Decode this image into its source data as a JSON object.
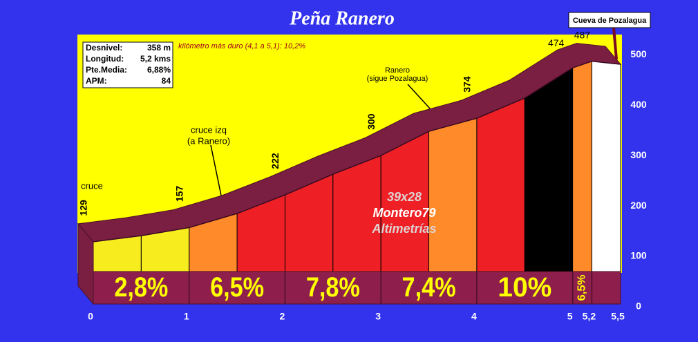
{
  "chart_data": {
    "type": "profile",
    "title": "Peña Ranero",
    "subtitle": "kilómetro más duro (4,1 a 5,1):  10,2%",
    "x": [
      0,
      0.5,
      1,
      1.5,
      2,
      2.5,
      3,
      3.5,
      4,
      4.5,
      5,
      5.2,
      5.5
    ],
    "values": [
      129,
      141,
      157,
      185,
      222,
      263,
      300,
      348,
      374,
      414,
      474,
      487,
      481
    ],
    "value_labeled": [
      true,
      false,
      true,
      false,
      true,
      false,
      true,
      false,
      true,
      false,
      true,
      true,
      false
    ],
    "segment_colors": [
      "#f6ec1e",
      "#f6ec1e",
      "#ff8a2a",
      "#ee2026",
      "#ee2026",
      "#ee2026",
      "#ee2026",
      "#ff8a2a",
      "#ee2026",
      "#000000",
      "#ff8a2a",
      "#ffffff"
    ],
    "gradients": [
      {
        "from": 0,
        "to": 1,
        "value": 2.8,
        "label": "2,8%"
      },
      {
        "from": 1,
        "to": 2,
        "value": 6.5,
        "label": "6,5%"
      },
      {
        "from": 2,
        "to": 3,
        "value": 7.8,
        "label": "7,8%"
      },
      {
        "from": 3,
        "to": 4,
        "value": 7.4,
        "label": "7,4%"
      },
      {
        "from": 4,
        "to": 5,
        "value": 10,
        "label": "10%"
      },
      {
        "from": 5,
        "to": 5.2,
        "value": 6.5,
        "label": "6,5%"
      }
    ],
    "xlim": [
      0,
      5.5
    ],
    "ylim": [
      0,
      540
    ],
    "xticks": [
      0,
      1,
      2,
      3,
      4,
      5,
      {
        "value": 5.2,
        "label": "5,2"
      },
      {
        "value": 5.5,
        "label": "5,5"
      }
    ],
    "yticks": [
      0,
      100,
      200,
      300,
      400,
      500
    ],
    "annotations": [
      {
        "lines": [
          "cruce"
        ]
      },
      {
        "lines": [
          "cruce izq",
          "(a Ranero)"
        ]
      },
      {
        "lines": [
          "Ranero",
          "(sigue Pozalagua)"
        ]
      }
    ],
    "callout": "Cueva de Pozalagua"
  },
  "info": [
    {
      "label": "Desnivel:",
      "value": "358 m"
    },
    {
      "label": "Longitud:",
      "value": "5,2 kms"
    },
    {
      "label": "Pte.Media:",
      "value": "6,88%"
    },
    {
      "label": "APM:",
      "value": "84"
    }
  ],
  "watermark": [
    "39x28",
    "Montero79",
    "Altimetrías"
  ]
}
